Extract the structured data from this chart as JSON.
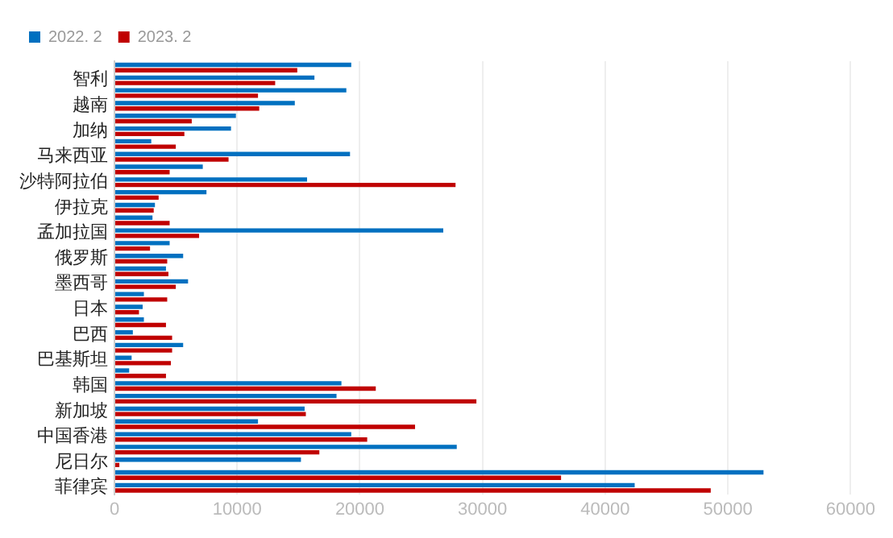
{
  "chart_data": {
    "type": "bar",
    "orientation": "horizontal",
    "categories": [
      null,
      "智利",
      null,
      "越南",
      null,
      "加纳",
      null,
      "马来西亚",
      null,
      "沙特阿拉伯",
      null,
      "伊拉克",
      null,
      "孟加拉国",
      null,
      "俄罗斯",
      null,
      "墨西哥",
      null,
      "日本",
      null,
      "巴西",
      null,
      "巴基斯坦",
      null,
      "韩国",
      null,
      "新加坡",
      null,
      "中国香港",
      null,
      "尼日尔",
      null,
      "菲律宾"
    ],
    "series": [
      {
        "name": "2022. 2",
        "color": "#0070c0",
        "values": [
          19300,
          16300,
          18900,
          14700,
          9900,
          9500,
          3000,
          19200,
          7200,
          15700,
          7500,
          3300,
          3100,
          26800,
          4500,
          5600,
          4200,
          6000,
          2400,
          2300,
          2400,
          1500,
          5600,
          1400,
          1200,
          18500,
          18100,
          15500,
          11700,
          19300,
          27900,
          15200,
          52900,
          42400
        ]
      },
      {
        "name": "2023. 2",
        "color": "#c00000",
        "values": [
          14900,
          13100,
          11700,
          11800,
          6300,
          5700,
          5000,
          9300,
          4500,
          27800,
          3600,
          3200,
          4500,
          6900,
          2900,
          4300,
          4400,
          5000,
          4300,
          2000,
          4200,
          4700,
          4700,
          4600,
          4200,
          21300,
          29500,
          15600,
          24500,
          20600,
          16700,
          400,
          36400,
          48600
        ]
      }
    ],
    "xlim": [
      0,
      60000
    ],
    "xticks": [
      0,
      10000,
      20000,
      30000,
      40000,
      50000,
      60000
    ],
    "grid": "x",
    "legend": "top left"
  }
}
